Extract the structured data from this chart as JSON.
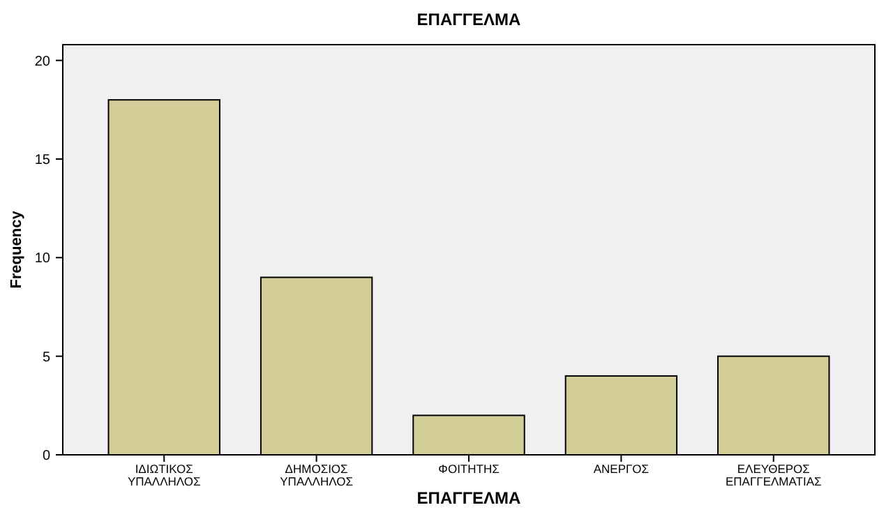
{
  "chart_data": {
    "type": "bar",
    "title": "ΕΠΑΓΓΕΛΜΑ",
    "xlabel": "ΕΠΑΓΓΕΛΜΑ",
    "ylabel": "Frequency",
    "categories": [
      "ΙΔΙΩΤΙΚΟΣ ΥΠΑΛΛΗΛΟΣ",
      "ΔΗΜΟΣΙΟΣ ΥΠΑΛΛΗΛΟΣ",
      "ΦΟΙΤΗΤΗΣ",
      "ΑΝΕΡΓΟΣ",
      "ΕΛΕΥΘΕΡΟΣ ΕΠΑΓΓΕΛΜΑΤΙΑΣ"
    ],
    "values": [
      18,
      9,
      2,
      4,
      5
    ],
    "color": "#d3ce97",
    "ylim": [
      0,
      20.8
    ],
    "yticks": [
      0,
      5,
      10,
      15,
      20
    ],
    "grid": false
  }
}
